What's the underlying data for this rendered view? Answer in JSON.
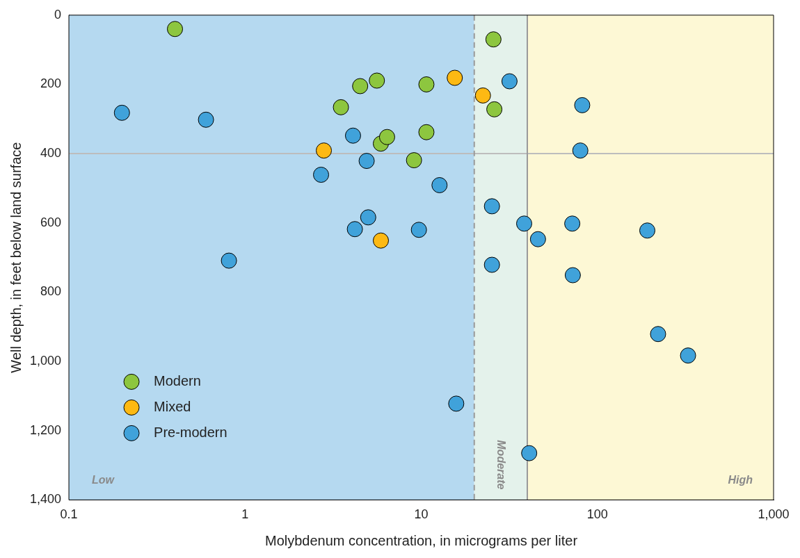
{
  "chart_data": {
    "type": "scatter",
    "xlabel": "Molybdenum concentration, in micrograms per liter",
    "ylabel": "Well depth, in feet below land surface",
    "log": "x",
    "xlim": [
      0.1,
      1000
    ],
    "xticks": [
      0.1,
      1,
      10,
      100,
      {
        "value": 1000,
        "label": "1,000"
      }
    ],
    "ylim": [
      1400,
      0
    ],
    "yticks": [
      0,
      200,
      400,
      600,
      800,
      {
        "value": 1000,
        "label": "1,000"
      },
      {
        "value": 1200,
        "label": "1,200"
      },
      {
        "value": 1400,
        "label": "1,400"
      }
    ],
    "grid": false,
    "legend": "bottom left",
    "marker": "circle",
    "bands": [
      {
        "axis": "x",
        "from": 0.1,
        "to": 20,
        "label": "Low",
        "color": "#b5d9f0"
      },
      {
        "axis": "x",
        "from": 20,
        "to": 40,
        "label": "Moderate",
        "color": "#e4f2eb"
      },
      {
        "axis": "x",
        "from": 40,
        "to": 1000,
        "label": "High",
        "color": "#fdf8d5"
      }
    ],
    "ref_lines": [
      {
        "axis": "y",
        "value": 400,
        "color": "#bdbdbd",
        "line_style": "solid"
      },
      {
        "axis": "x",
        "value": 20,
        "color": "#9a9a9a",
        "line_style": "dashed"
      },
      {
        "axis": "x",
        "value": 40,
        "color": "#9a9a9a",
        "line_style": "solid"
      }
    ],
    "series": [
      {
        "name": "Modern",
        "color": "#8dc63f",
        "x": [
          0.4,
          25.7,
          4.5,
          5.6,
          10.7,
          3.5,
          26,
          5.9,
          6.4,
          10.7,
          9.1
        ],
        "values": [
          40,
          70,
          205,
          189,
          200,
          266,
          272,
          371,
          352,
          338,
          419
        ]
      },
      {
        "name": "Mixed",
        "color": "#fdb913",
        "x": [
          15.5,
          22.4,
          2.8,
          5.9
        ],
        "values": [
          181,
          232,
          391,
          651
        ]
      },
      {
        "name": "Pre-modern",
        "color": "#40a2da",
        "x": [
          0.2,
          0.6,
          0.81,
          2.7,
          4.1,
          4.9,
          4.2,
          5.0,
          9.7,
          12.7,
          15.8,
          31.7,
          25.2,
          25.2,
          38.4,
          46,
          41,
          82,
          80,
          72,
          72.5,
          192,
          221,
          327
        ],
        "values": [
          282,
          302,
          709,
          461,
          348,
          421,
          618,
          584,
          620,
          491,
          1122,
          191,
          552,
          721,
          602,
          647,
          1265,
          260,
          391,
          602,
          751,
          622,
          921,
          983
        ]
      }
    ]
  }
}
